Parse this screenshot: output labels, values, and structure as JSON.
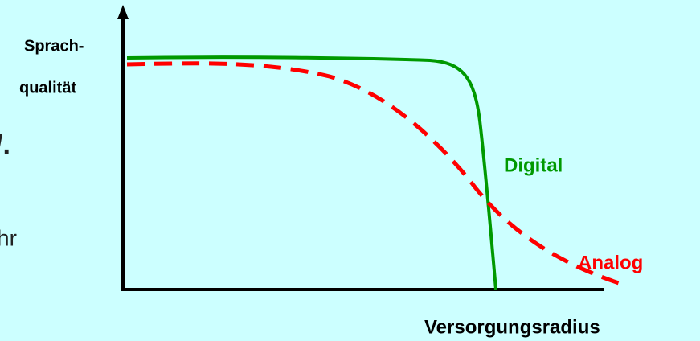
{
  "axes": {
    "y_label": [
      "Sprach-",
      "qualität"
    ],
    "x_label": "Versorgungsradius"
  },
  "curves": [
    {
      "label": "Digital",
      "color": "#009900"
    },
    {
      "label": "Analog",
      "color": "#ff0000"
    }
  ],
  "cropped_text": [
    "/.",
    "hr"
  ]
}
